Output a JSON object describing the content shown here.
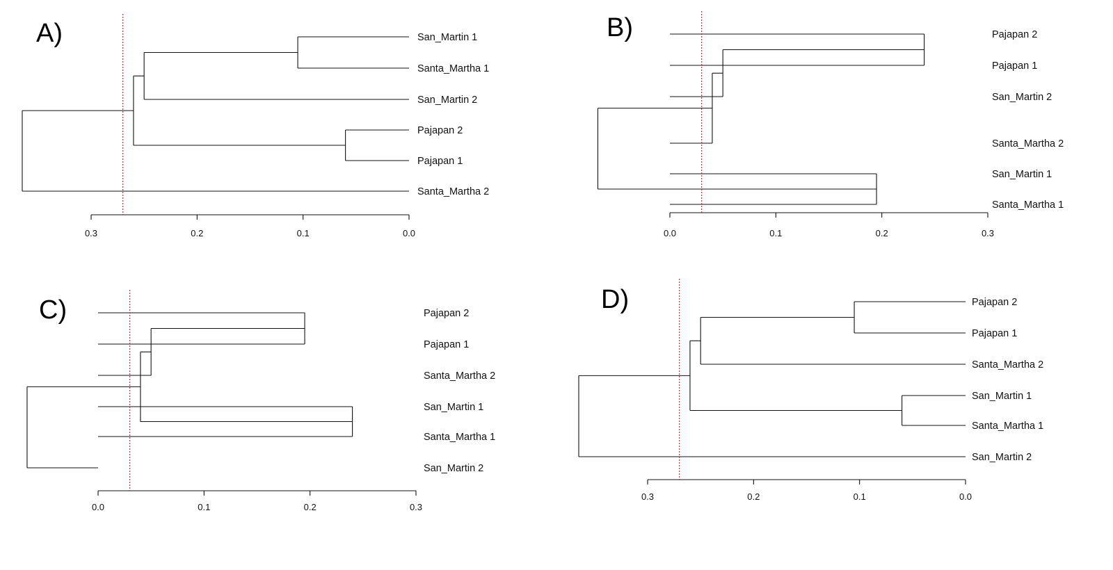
{
  "chart_data": [
    {
      "type": "dendrogram",
      "panel": "A)",
      "axis": {
        "ticks": [
          0.3,
          0.2,
          0.1,
          0.0
        ],
        "tick_labels": [
          "0.3",
          "0.2",
          "0.1",
          "0.0"
        ],
        "direction": "decreasing"
      },
      "cutoff": 0.27,
      "leaves": [
        "San_Martin 1",
        "Santa_Martha 1",
        "San_Martin 2",
        "Pajapan 2",
        "Pajapan 1",
        "Santa_Martha 2"
      ],
      "merges": [
        {
          "id": "a",
          "children": [
            "San_Martin 1",
            "Santa_Martha 1"
          ],
          "height": 0.105
        },
        {
          "id": "b",
          "children": [
            "a",
            "San_Martin 2"
          ],
          "height": 0.25
        },
        {
          "id": "c",
          "children": [
            "Pajapan 2",
            "Pajapan 1"
          ],
          "height": 0.06
        },
        {
          "id": "d",
          "children": [
            "b",
            "c"
          ],
          "height": 0.26
        },
        {
          "id": "root",
          "children": [
            "d",
            "Santa_Martha 2"
          ],
          "height": 0.365
        }
      ]
    },
    {
      "type": "dendrogram",
      "panel": "B)",
      "axis": {
        "ticks": [
          0.0,
          0.1,
          0.2,
          0.3
        ],
        "tick_labels": [
          "0.0",
          "0.1",
          "0.2",
          "0.3"
        ],
        "direction": "increasing"
      },
      "cutoff": 0.03,
      "leaves": [
        "Pajapan 2",
        "Pajapan 1",
        "San_Martin 2",
        "Santa_Martha 2",
        "San_Martin 1",
        "Santa_Martha 1"
      ],
      "merges": [
        {
          "id": "a",
          "children": [
            "Pajapan 2",
            "Pajapan 1"
          ],
          "height": 0.24
        },
        {
          "id": "b",
          "children": [
            "a",
            "San_Martin 2"
          ],
          "height": 0.05
        },
        {
          "id": "c",
          "children": [
            "b",
            "Santa_Martha 2"
          ],
          "height": 0.04
        },
        {
          "id": "d",
          "children": [
            "San_Martin 1",
            "Santa_Martha 1"
          ],
          "height": 0.195
        },
        {
          "id": "root",
          "children": [
            "c",
            "d"
          ],
          "height": -0.068
        }
      ]
    },
    {
      "type": "dendrogram",
      "panel": "C)",
      "axis": {
        "ticks": [
          0.0,
          0.1,
          0.2,
          0.3
        ],
        "tick_labels": [
          "0.0",
          "0.1",
          "0.2",
          "0.3"
        ],
        "direction": "increasing"
      },
      "cutoff": 0.03,
      "leaves": [
        "Pajapan 2",
        "Pajapan 1",
        "Santa_Martha 2",
        "San_Martin 1",
        "Santa_Martha 1",
        "San_Martin 2"
      ],
      "merges": [
        {
          "id": "a",
          "children": [
            "Pajapan 2",
            "Pajapan 1"
          ],
          "height": 0.195
        },
        {
          "id": "b",
          "children": [
            "a",
            "Santa_Martha 2"
          ],
          "height": 0.05
        },
        {
          "id": "c",
          "children": [
            "San_Martin 1",
            "Santa_Martha 1"
          ],
          "height": 0.24
        },
        {
          "id": "d",
          "children": [
            "b",
            "c"
          ],
          "height": 0.04
        },
        {
          "id": "root",
          "children": [
            "d",
            "San_Martin 2"
          ],
          "height": -0.067
        }
      ]
    },
    {
      "type": "dendrogram",
      "panel": "D)",
      "axis": {
        "ticks": [
          0.3,
          0.2,
          0.1,
          0.0
        ],
        "tick_labels": [
          "0.3",
          "0.2",
          "0.1",
          "0.0"
        ],
        "direction": "decreasing"
      },
      "cutoff": 0.27,
      "leaves": [
        "Pajapan 2",
        "Pajapan 1",
        "Santa_Martha 2",
        "San_Martin 1",
        "Santa_Martha 1",
        "San_Martin 2"
      ],
      "merges": [
        {
          "id": "a",
          "children": [
            "Pajapan 2",
            "Pajapan 1"
          ],
          "height": 0.105
        },
        {
          "id": "b",
          "children": [
            "a",
            "Santa_Martha 2"
          ],
          "height": 0.25
        },
        {
          "id": "c",
          "children": [
            "San_Martin 1",
            "Santa_Martha 1"
          ],
          "height": 0.06
        },
        {
          "id": "d",
          "children": [
            "b",
            "c"
          ],
          "height": 0.26
        },
        {
          "id": "root",
          "children": [
            "d",
            "San_Martin 2"
          ],
          "height": 0.365
        }
      ]
    }
  ],
  "colors": {
    "branch": "#111111",
    "cutoff": "#b0202a",
    "background": "#ffffff"
  }
}
